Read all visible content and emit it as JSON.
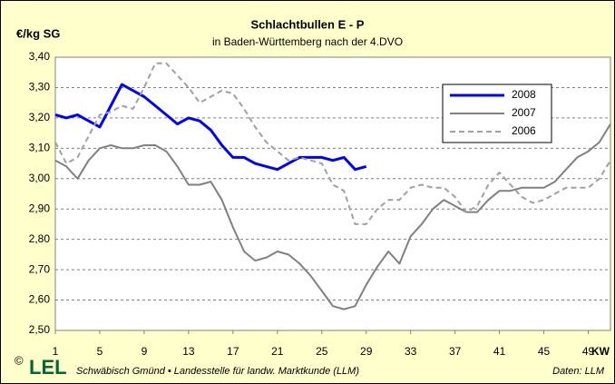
{
  "chart_data": {
    "type": "line",
    "title": "Schlachtbullen E - P",
    "subtitle": "in Baden-Württemberg nach der 4.DVO",
    "y_label": "€/kg SG",
    "x_label": "KW",
    "footer": {
      "copyright": "©",
      "logo": "LEL",
      "text": "Schwäbisch Gmünd • Landesstelle für landw. Marktkunde (LLM)",
      "source": "Daten: LLM"
    },
    "x": [
      1,
      2,
      3,
      4,
      5,
      6,
      7,
      8,
      9,
      10,
      11,
      12,
      13,
      14,
      15,
      16,
      17,
      18,
      19,
      20,
      21,
      22,
      23,
      24,
      25,
      26,
      27,
      28,
      29,
      30,
      31,
      32,
      33,
      34,
      35,
      36,
      37,
      38,
      39,
      40,
      41,
      42,
      43,
      44,
      45,
      46,
      47,
      48,
      49,
      50,
      51
    ],
    "xlim": [
      1,
      51
    ],
    "xticks": [
      1,
      5,
      9,
      13,
      17,
      21,
      25,
      29,
      33,
      37,
      41,
      45,
      49
    ],
    "ylim": [
      2.5,
      3.4
    ],
    "yticks": [
      {
        "value": 2.5,
        "label": "2,50"
      },
      {
        "value": 2.6,
        "label": "2,60"
      },
      {
        "value": 2.7,
        "label": "2,70"
      },
      {
        "value": 2.8,
        "label": "2,80"
      },
      {
        "value": 2.9,
        "label": "2,90"
      },
      {
        "value": 3.0,
        "label": "3,00"
      },
      {
        "value": 3.1,
        "label": "3,10"
      },
      {
        "value": 3.2,
        "label": "3,20"
      },
      {
        "value": 3.3,
        "label": "3,30"
      },
      {
        "value": 3.4,
        "label": "3,40"
      }
    ],
    "grid": true,
    "legend": "top-right",
    "series": [
      {
        "name": "2008",
        "color": "#0000ff",
        "dash": false,
        "width": 3,
        "values": [
          3.21,
          3.2,
          3.21,
          3.19,
          3.17,
          3.24,
          3.31,
          3.29,
          3.27,
          3.24,
          3.21,
          3.18,
          3.2,
          3.19,
          3.16,
          3.11,
          3.07,
          3.07,
          3.05,
          3.04,
          3.03,
          3.05,
          3.07,
          3.07,
          3.07,
          3.06,
          3.07,
          3.03,
          3.04,
          null,
          null,
          null,
          null,
          null,
          null,
          null,
          null,
          null,
          null,
          null,
          null,
          null,
          null,
          null,
          null,
          null,
          null,
          null,
          null,
          null,
          null
        ]
      },
      {
        "name": "2007",
        "color": "#808080",
        "dash": false,
        "width": 2,
        "values": [
          3.06,
          3.04,
          3.0,
          3.06,
          3.1,
          3.11,
          3.1,
          3.1,
          3.11,
          3.11,
          3.09,
          3.04,
          2.98,
          2.98,
          2.99,
          2.93,
          2.84,
          2.76,
          2.73,
          2.74,
          2.76,
          2.75,
          2.72,
          2.68,
          2.63,
          2.58,
          2.57,
          2.58,
          2.65,
          2.71,
          2.76,
          2.72,
          2.81,
          2.85,
          2.9,
          2.93,
          2.91,
          2.89,
          2.89,
          2.93,
          2.96,
          2.96,
          2.97,
          2.97,
          2.97,
          2.99,
          3.03,
          3.07,
          3.09,
          3.12,
          3.18
        ]
      },
      {
        "name": "2006",
        "color": "#a0a0a0",
        "dash": true,
        "width": 2,
        "values": [
          3.12,
          3.05,
          3.07,
          3.14,
          3.21,
          3.22,
          3.24,
          3.23,
          3.3,
          3.38,
          3.38,
          3.34,
          3.3,
          3.25,
          3.27,
          3.29,
          3.28,
          3.23,
          3.17,
          3.12,
          3.09,
          3.06,
          3.07,
          3.06,
          3.05,
          2.98,
          2.96,
          2.85,
          2.85,
          2.9,
          2.93,
          2.93,
          2.97,
          2.98,
          2.97,
          2.97,
          2.94,
          2.89,
          2.91,
          2.98,
          3.02,
          2.98,
          2.94,
          2.92,
          2.93,
          2.95,
          2.97,
          2.97,
          2.97,
          3.0,
          3.06
        ]
      }
    ]
  }
}
